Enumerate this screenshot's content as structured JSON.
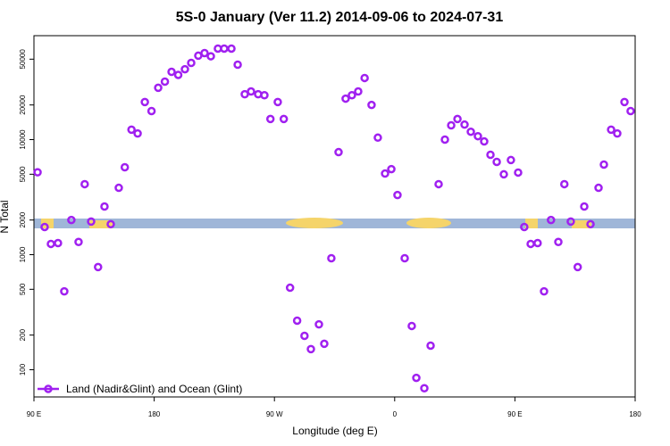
{
  "chart_data": {
    "type": "scatter",
    "title": "5S-0 January (Ver 11.2)   2014-09-06 to 2024-07-31",
    "xlabel": "Longitude (deg E)",
    "ylabel": "N Total",
    "x": [
      92.7,
      98,
      102.7,
      108,
      112.7,
      118,
      123.4,
      128,
      132.8,
      138,
      142.8,
      147.5,
      153.5,
      158,
      163,
      167.6,
      173,
      178,
      183,
      188,
      193,
      198,
      203,
      207.7,
      213,
      217.7,
      222.4,
      227.7,
      232.4,
      237.8,
      242.5,
      247.8,
      252.5,
      257.8,
      262.5,
      267,
      272.5,
      277,
      281.7,
      287,
      292.5,
      297.3,
      303.3,
      307.3,
      312.6,
      318,
      323.3,
      328,
      332.7,
      337.5,
      342.7,
      347.4,
      352.8,
      357.5,
      362.1,
      367.5,
      372.8,
      376.2,
      382.2,
      386.9,
      392.9,
      397.6,
      402.3,
      407,
      412.3,
      417,
      422.3,
      427,
      431.7,
      436.4,
      441.7,
      447,
      452.4,
      457,
      461.8,
      467,
      471.8,
      477,
      482.5,
      487,
      491.8,
      497,
      501.9,
      506.6,
      512.6,
      516.6,
      522,
      526.6,
      532,
      536.6
    ],
    "series": [
      {
        "name": "Land (Nadir&Glint) and Ocean (Glint)",
        "color": "#a020f0",
        "values": [
          5200,
          1740,
          1240,
          1260,
          480,
          2000,
          1290,
          4100,
          1940,
          780,
          2620,
          1840,
          3810,
          5750,
          12200,
          11300,
          21200,
          17700,
          28200,
          31900,
          38800,
          36500,
          40900,
          46400,
          53600,
          56500,
          53000,
          61800,
          61800,
          61800,
          44800,
          24800,
          26200,
          24800,
          24300,
          15100,
          21200,
          15100,
          516,
          267,
          197,
          151,
          248,
          168,
          931,
          7780,
          22700,
          24300,
          26200,
          34300,
          20000,
          10400,
          5070,
          5540,
          3300,
          931,
          240,
          85,
          69,
          162,
          4100,
          10000,
          13300,
          15100,
          13500,
          11700,
          10700,
          9640,
          7380,
          6400,
          4990,
          6640,
          5170,
          1740,
          1240,
          1260,
          480,
          2000,
          1290,
          4100,
          1940,
          780,
          2620,
          1840,
          3810,
          6070,
          12200,
          11300,
          21200,
          17700
        ]
      }
    ],
    "xlim": [
      90,
      540
    ],
    "xticks": [
      {
        "value": 90,
        "label": "90 E"
      },
      180,
      {
        "value": 270,
        "label": "90 W"
      },
      {
        "value": 360,
        "label": "0"
      },
      {
        "value": 450,
        "label": "90 E"
      },
      {
        "value": 540,
        "label": "180"
      }
    ],
    "ylim": [
      58,
      80000
    ],
    "yscale": "log",
    "yticks": [
      100,
      200,
      500,
      1000,
      2000,
      5000,
      10000,
      20000,
      50000
    ],
    "legend": "lower left"
  }
}
